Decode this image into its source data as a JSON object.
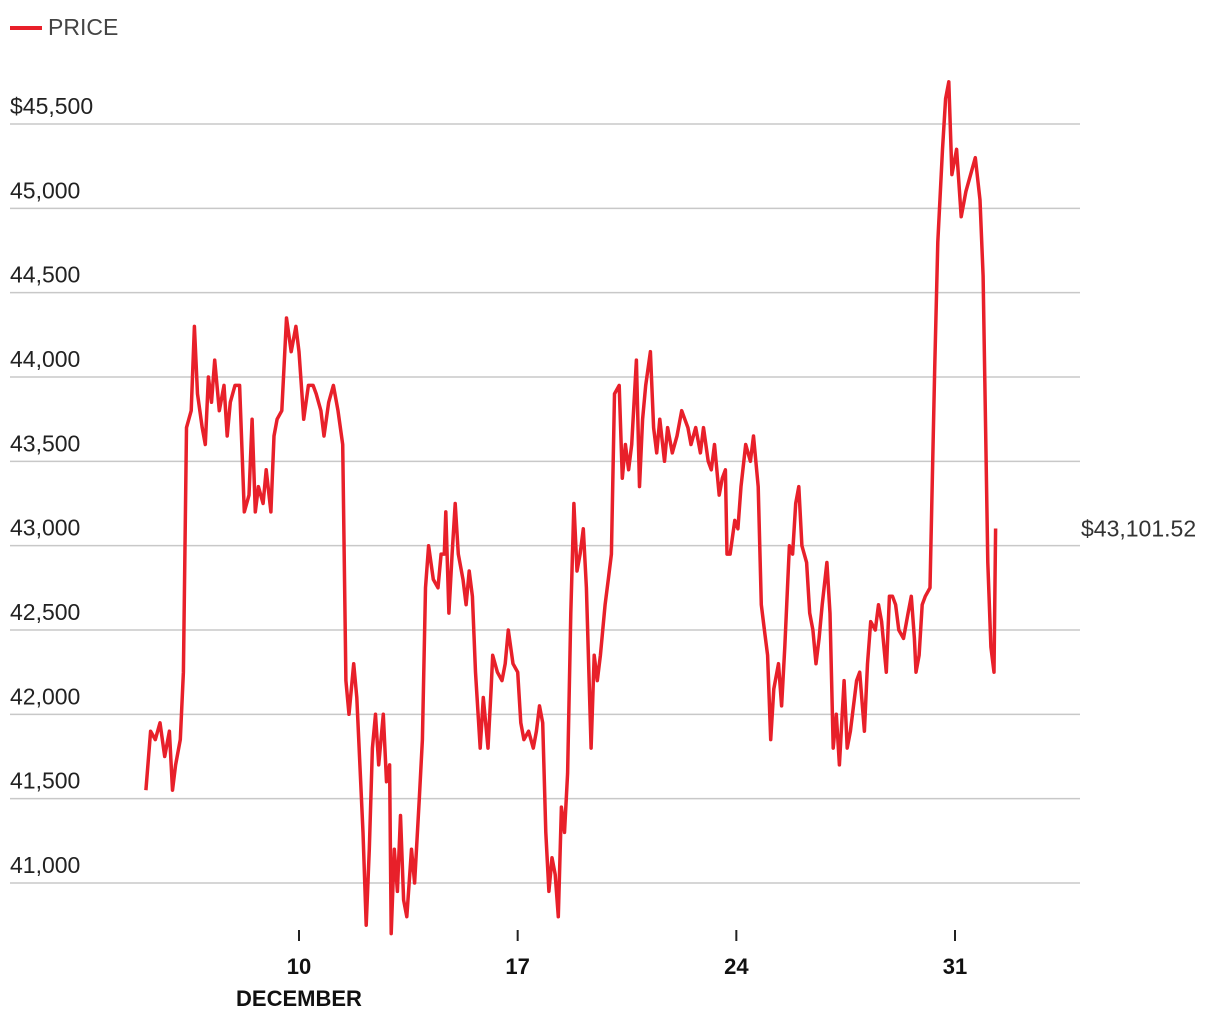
{
  "legend": {
    "label": "PRICE",
    "color": "#e8202a"
  },
  "end_label": "$43,101.52",
  "y_ticks": [
    {
      "value": 41000,
      "label": "41,000"
    },
    {
      "value": 41500,
      "label": "41,500"
    },
    {
      "value": 42000,
      "label": "42,000"
    },
    {
      "value": 42500,
      "label": "42,500"
    },
    {
      "value": 43000,
      "label": "43,000"
    },
    {
      "value": 43500,
      "label": "43,500"
    },
    {
      "value": 44000,
      "label": "44,000"
    },
    {
      "value": 44500,
      "label": "44,500"
    },
    {
      "value": 45000,
      "label": "45,000"
    },
    {
      "value": 45500,
      "label": "$45,500"
    }
  ],
  "x_ticks": [
    {
      "day": 10,
      "label": "10",
      "sublabel": "DECEMBER"
    },
    {
      "day": 17,
      "label": "17",
      "sublabel": ""
    },
    {
      "day": 24,
      "label": "24",
      "sublabel": ""
    },
    {
      "day": 31,
      "label": "31",
      "sublabel": ""
    }
  ],
  "chart_data": {
    "type": "line",
    "title": "",
    "xlabel": "DECEMBER",
    "ylabel": "",
    "ylim": [
      40700,
      45900
    ],
    "xlim": [
      4.2,
      35
    ],
    "grid": true,
    "legend_position": "top-left",
    "series": [
      {
        "name": "PRICE",
        "color": "#e8202a",
        "points": [
          [
            5.1,
            41550
          ],
          [
            5.25,
            41900
          ],
          [
            5.4,
            41850
          ],
          [
            5.55,
            41950
          ],
          [
            5.7,
            41750
          ],
          [
            5.85,
            41900
          ],
          [
            5.95,
            41550
          ],
          [
            6.05,
            41700
          ],
          [
            6.2,
            41850
          ],
          [
            6.3,
            42250
          ],
          [
            6.4,
            43700
          ],
          [
            6.55,
            43800
          ],
          [
            6.65,
            44300
          ],
          [
            6.75,
            43900
          ],
          [
            6.9,
            43700
          ],
          [
            7.0,
            43600
          ],
          [
            7.1,
            44000
          ],
          [
            7.2,
            43850
          ],
          [
            7.3,
            44100
          ],
          [
            7.45,
            43800
          ],
          [
            7.6,
            43950
          ],
          [
            7.7,
            43650
          ],
          [
            7.8,
            43850
          ],
          [
            7.95,
            43950
          ],
          [
            8.1,
            43950
          ],
          [
            8.25,
            43200
          ],
          [
            8.4,
            43300
          ],
          [
            8.5,
            43750
          ],
          [
            8.6,
            43200
          ],
          [
            8.7,
            43350
          ],
          [
            8.85,
            43250
          ],
          [
            8.95,
            43450
          ],
          [
            9.1,
            43200
          ],
          [
            9.2,
            43650
          ],
          [
            9.3,
            43750
          ],
          [
            9.45,
            43800
          ],
          [
            9.6,
            44350
          ],
          [
            9.75,
            44150
          ],
          [
            9.9,
            44300
          ],
          [
            10.0,
            44150
          ],
          [
            10.15,
            43750
          ],
          [
            10.3,
            43950
          ],
          [
            10.45,
            43950
          ],
          [
            10.55,
            43900
          ],
          [
            10.7,
            43800
          ],
          [
            10.8,
            43650
          ],
          [
            10.95,
            43850
          ],
          [
            11.1,
            43950
          ],
          [
            11.25,
            43800
          ],
          [
            11.4,
            43600
          ],
          [
            11.5,
            42200
          ],
          [
            11.6,
            42000
          ],
          [
            11.75,
            42300
          ],
          [
            11.85,
            42100
          ],
          [
            11.95,
            41700
          ],
          [
            12.05,
            41300
          ],
          [
            12.15,
            40750
          ],
          [
            12.25,
            41200
          ],
          [
            12.35,
            41800
          ],
          [
            12.45,
            42000
          ],
          [
            12.55,
            41700
          ],
          [
            12.7,
            42000
          ],
          [
            12.8,
            41600
          ],
          [
            12.9,
            41700
          ],
          [
            12.95,
            40700
          ],
          [
            13.05,
            41200
          ],
          [
            13.15,
            40950
          ],
          [
            13.25,
            41400
          ],
          [
            13.35,
            40900
          ],
          [
            13.45,
            40800
          ],
          [
            13.6,
            41200
          ],
          [
            13.7,
            41000
          ],
          [
            13.85,
            41500
          ],
          [
            13.95,
            41850
          ],
          [
            14.05,
            42750
          ],
          [
            14.15,
            43000
          ],
          [
            14.3,
            42800
          ],
          [
            14.45,
            42750
          ],
          [
            14.55,
            42950
          ],
          [
            14.65,
            42950
          ],
          [
            14.7,
            43200
          ],
          [
            14.8,
            42600
          ],
          [
            14.9,
            42950
          ],
          [
            15.0,
            43250
          ],
          [
            15.1,
            42950
          ],
          [
            15.25,
            42800
          ],
          [
            15.35,
            42650
          ],
          [
            15.45,
            42850
          ],
          [
            15.55,
            42700
          ],
          [
            15.65,
            42250
          ],
          [
            15.8,
            41800
          ],
          [
            15.9,
            42100
          ],
          [
            16.05,
            41800
          ],
          [
            16.15,
            42150
          ],
          [
            16.2,
            42350
          ],
          [
            16.35,
            42250
          ],
          [
            16.5,
            42200
          ],
          [
            16.6,
            42300
          ],
          [
            16.7,
            42500
          ],
          [
            16.85,
            42300
          ],
          [
            17.0,
            42250
          ],
          [
            17.1,
            41950
          ],
          [
            17.2,
            41850
          ],
          [
            17.35,
            41900
          ],
          [
            17.5,
            41800
          ],
          [
            17.6,
            41900
          ],
          [
            17.7,
            42050
          ],
          [
            17.8,
            41950
          ],
          [
            17.9,
            41300
          ],
          [
            18.0,
            40950
          ],
          [
            18.1,
            41150
          ],
          [
            18.2,
            41050
          ],
          [
            18.3,
            40800
          ],
          [
            18.4,
            41450
          ],
          [
            18.5,
            41300
          ],
          [
            18.6,
            41650
          ],
          [
            18.7,
            42600
          ],
          [
            18.8,
            43250
          ],
          [
            18.9,
            42850
          ],
          [
            19.0,
            42950
          ],
          [
            19.1,
            43100
          ],
          [
            19.2,
            42750
          ],
          [
            19.35,
            41800
          ],
          [
            19.45,
            42350
          ],
          [
            19.55,
            42200
          ],
          [
            19.65,
            42350
          ],
          [
            19.8,
            42650
          ],
          [
            19.9,
            42800
          ],
          [
            20.0,
            42950
          ],
          [
            20.1,
            43900
          ],
          [
            20.25,
            43950
          ],
          [
            20.35,
            43400
          ],
          [
            20.45,
            43600
          ],
          [
            20.55,
            43450
          ],
          [
            20.65,
            43600
          ],
          [
            20.8,
            44100
          ],
          [
            20.9,
            43350
          ],
          [
            21.0,
            43750
          ],
          [
            21.1,
            43950
          ],
          [
            21.25,
            44150
          ],
          [
            21.35,
            43700
          ],
          [
            21.45,
            43550
          ],
          [
            21.55,
            43750
          ],
          [
            21.7,
            43500
          ],
          [
            21.8,
            43700
          ],
          [
            21.95,
            43550
          ],
          [
            22.1,
            43650
          ],
          [
            22.25,
            43800
          ],
          [
            22.35,
            43750
          ],
          [
            22.45,
            43700
          ],
          [
            22.55,
            43600
          ],
          [
            22.7,
            43700
          ],
          [
            22.85,
            43550
          ],
          [
            22.95,
            43700
          ],
          [
            23.1,
            43500
          ],
          [
            23.2,
            43450
          ],
          [
            23.3,
            43600
          ],
          [
            23.45,
            43300
          ],
          [
            23.55,
            43400
          ],
          [
            23.65,
            43450
          ],
          [
            23.7,
            42950
          ],
          [
            23.8,
            42950
          ],
          [
            23.95,
            43150
          ],
          [
            24.05,
            43100
          ],
          [
            24.15,
            43350
          ],
          [
            24.3,
            43600
          ],
          [
            24.45,
            43500
          ],
          [
            24.55,
            43650
          ],
          [
            24.7,
            43350
          ],
          [
            24.8,
            42650
          ],
          [
            24.9,
            42500
          ],
          [
            25.0,
            42350
          ],
          [
            25.1,
            41850
          ],
          [
            25.2,
            42150
          ],
          [
            25.35,
            42300
          ],
          [
            25.45,
            42050
          ],
          [
            25.55,
            42400
          ],
          [
            25.7,
            43000
          ],
          [
            25.8,
            42950
          ],
          [
            25.9,
            43250
          ],
          [
            26.0,
            43350
          ],
          [
            26.1,
            43000
          ],
          [
            26.25,
            42900
          ],
          [
            26.35,
            42600
          ],
          [
            26.45,
            42500
          ],
          [
            26.55,
            42300
          ],
          [
            26.65,
            42450
          ],
          [
            26.75,
            42650
          ],
          [
            26.9,
            42900
          ],
          [
            27.0,
            42600
          ],
          [
            27.1,
            41800
          ],
          [
            27.2,
            42000
          ],
          [
            27.3,
            41700
          ],
          [
            27.45,
            42200
          ],
          [
            27.55,
            41800
          ],
          [
            27.65,
            41900
          ],
          [
            27.75,
            42050
          ],
          [
            27.85,
            42200
          ],
          [
            27.95,
            42250
          ],
          [
            28.1,
            41900
          ],
          [
            28.2,
            42300
          ],
          [
            28.3,
            42550
          ],
          [
            28.45,
            42500
          ],
          [
            28.55,
            42650
          ],
          [
            28.65,
            42550
          ],
          [
            28.8,
            42250
          ],
          [
            28.9,
            42700
          ],
          [
            29.0,
            42700
          ],
          [
            29.1,
            42650
          ],
          [
            29.2,
            42500
          ],
          [
            29.35,
            42450
          ],
          [
            29.5,
            42600
          ],
          [
            29.6,
            42700
          ],
          [
            29.7,
            42450
          ],
          [
            29.75,
            42250
          ],
          [
            29.85,
            42350
          ],
          [
            29.95,
            42650
          ],
          [
            30.05,
            42700
          ],
          [
            30.2,
            42750
          ],
          [
            30.35,
            44050
          ],
          [
            30.45,
            44800
          ],
          [
            30.6,
            45350
          ],
          [
            30.7,
            45650
          ],
          [
            30.8,
            45750
          ],
          [
            30.9,
            45200
          ],
          [
            31.05,
            45350
          ],
          [
            31.2,
            44950
          ],
          [
            31.35,
            45100
          ],
          [
            31.5,
            45200
          ],
          [
            31.65,
            45300
          ],
          [
            31.8,
            45050
          ],
          [
            31.9,
            44600
          ],
          [
            32.05,
            42900
          ],
          [
            32.15,
            42400
          ],
          [
            32.25,
            42250
          ],
          [
            32.3,
            43101.52
          ]
        ]
      }
    ]
  }
}
